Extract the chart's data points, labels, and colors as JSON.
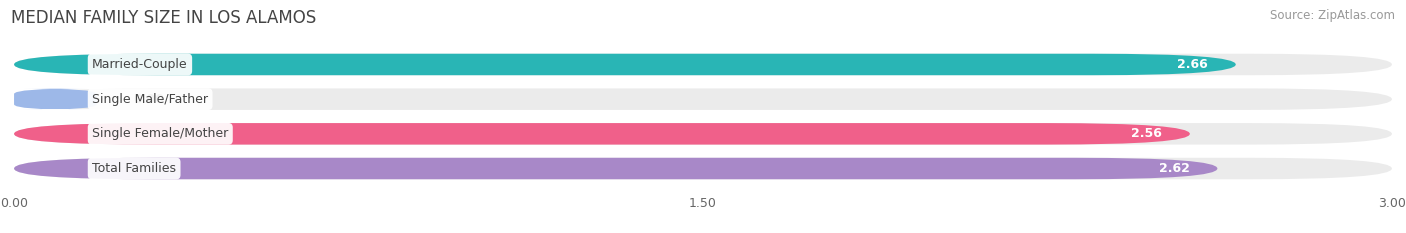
{
  "title": "MEDIAN FAMILY SIZE IN LOS ALAMOS",
  "source": "Source: ZipAtlas.com",
  "categories": [
    "Married-Couple",
    "Single Male/Father",
    "Single Female/Mother",
    "Total Families"
  ],
  "values": [
    2.66,
    0.0,
    2.56,
    2.62
  ],
  "bar_colors": [
    "#29b5b5",
    "#9db8e8",
    "#f0608a",
    "#a888c8"
  ],
  "background_color": "#ffffff",
  "bar_bg_color": "#ebebeb",
  "label_bg_color": "#ffffff",
  "xlim": [
    0,
    3.0
  ],
  "xticks": [
    0.0,
    1.5,
    3.0
  ],
  "title_fontsize": 12,
  "source_fontsize": 8.5,
  "label_fontsize": 9,
  "value_fontsize": 9
}
